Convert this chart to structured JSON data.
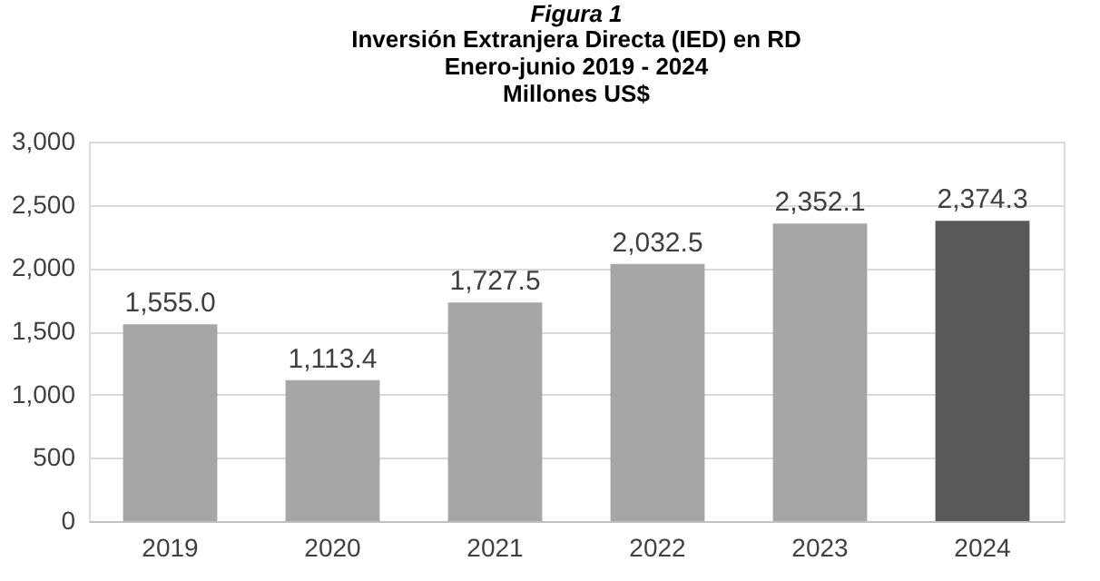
{
  "chart_data": {
    "type": "bar",
    "title": "Figura 1",
    "subtitle": "Inversión Extranjera Directa (IED) en RD\nEnero-junio 2019 - 2024\nMillones US$",
    "categories": [
      "2019",
      "2020",
      "2021",
      "2022",
      "2023",
      "2024"
    ],
    "values": [
      1555.0,
      1113.4,
      1727.5,
      2032.5,
      2352.1,
      2374.3
    ],
    "colors": [
      "#a6a6a6",
      "#a6a6a6",
      "#a6a6a6",
      "#a6a6a6",
      "#a6a6a6",
      "#58595b"
    ],
    "value_labels": [
      "1,555.0",
      "1,113.4",
      "1,727.5",
      "2,032.5",
      "2,352.1",
      "2,374.3"
    ],
    "ylim": [
      0,
      3000
    ],
    "yticks": [
      {
        "value": 0,
        "label": "0"
      },
      {
        "value": 500,
        "label": "500"
      },
      {
        "value": 1000,
        "label": "1,000"
      },
      {
        "value": 1500,
        "label": "1,500"
      },
      {
        "value": 2000,
        "label": "2,000"
      },
      {
        "value": 2500,
        "label": "2,500"
      },
      {
        "value": 3000,
        "label": "3,000"
      }
    ],
    "grid": "y"
  }
}
